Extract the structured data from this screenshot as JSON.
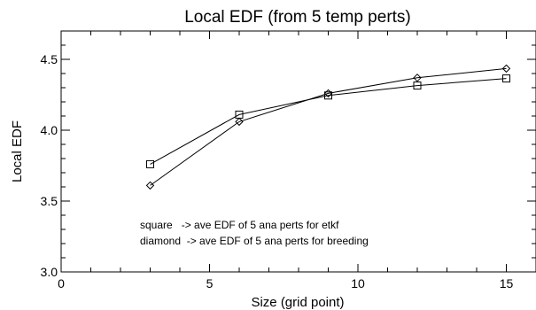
{
  "chart_data": {
    "type": "line",
    "title": "Local EDF (from 5 temp perts)",
    "xlabel": "Size (grid point)",
    "ylabel": "Local EDF",
    "xlim": [
      0,
      16
    ],
    "ylim": [
      3.0,
      4.7
    ],
    "x_ticks": [
      0,
      5,
      10,
      15
    ],
    "x_tick_labels": [
      "0",
      "5",
      "10",
      "15"
    ],
    "y_ticks": [
      3.0,
      3.5,
      4.0,
      4.5
    ],
    "y_tick_labels": [
      "3.0",
      "3.5",
      "4.0",
      "4.5"
    ],
    "x_minor_step": 1,
    "y_minor_step": 0.1,
    "grid": false,
    "series": [
      {
        "marker": "square",
        "x": [
          3,
          6,
          9,
          12,
          15
        ],
        "y": [
          3.76,
          4.11,
          4.245,
          4.315,
          4.365
        ]
      },
      {
        "marker": "diamond",
        "x": [
          3,
          6,
          9,
          12,
          15
        ],
        "y": [
          3.61,
          4.06,
          4.26,
          4.37,
          4.435
        ]
      }
    ],
    "annotations": [
      "square   -> ave EDF of 5 ana perts for etkf",
      "diamond  -> ave EDF of 5 ana perts for breeding"
    ]
  }
}
